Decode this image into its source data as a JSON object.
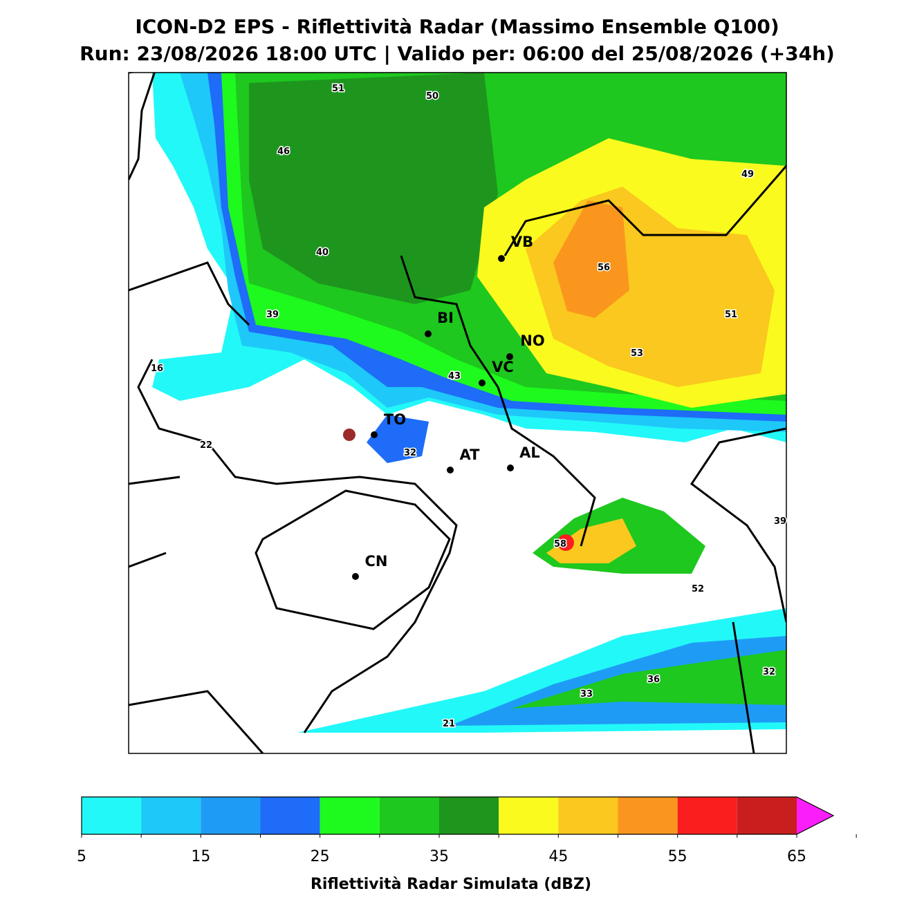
{
  "header": {
    "title": "ICON-D2 EPS - Riflettività Radar (Massimo Ensemble Q100)",
    "subtitle": "Run: 23/08/2026 18:00 UTC | Valido per: 06:00 del 25/08/2026 (+34h)"
  },
  "map": {
    "cities": [
      "VB",
      "BI",
      "NO",
      "VC",
      "TO",
      "AT",
      "AL",
      "CN"
    ],
    "values": [
      51,
      50,
      46,
      49,
      40,
      56,
      39,
      51,
      53,
      16,
      43,
      22,
      32,
      39,
      58,
      52,
      32,
      36,
      33,
      21
    ]
  },
  "colorbar": {
    "label": "Riflettività Radar Simulata (dBZ)",
    "bounds": [
      5,
      10,
      15,
      20,
      25,
      30,
      35,
      40,
      45,
      50,
      55,
      60,
      65,
      70
    ],
    "colors": [
      "#22f8f8",
      "#1ec8f8",
      "#1e9cf5",
      "#1e6cf8",
      "#1efa1e",
      "#1ec81e",
      "#1e961e",
      "#fafa1e",
      "#fac81e",
      "#fa961e",
      "#fa1e1e",
      "#c81e1e",
      "#fa1efa"
    ],
    "ticks": [
      5,
      15,
      25,
      35,
      45,
      55,
      65
    ]
  }
}
